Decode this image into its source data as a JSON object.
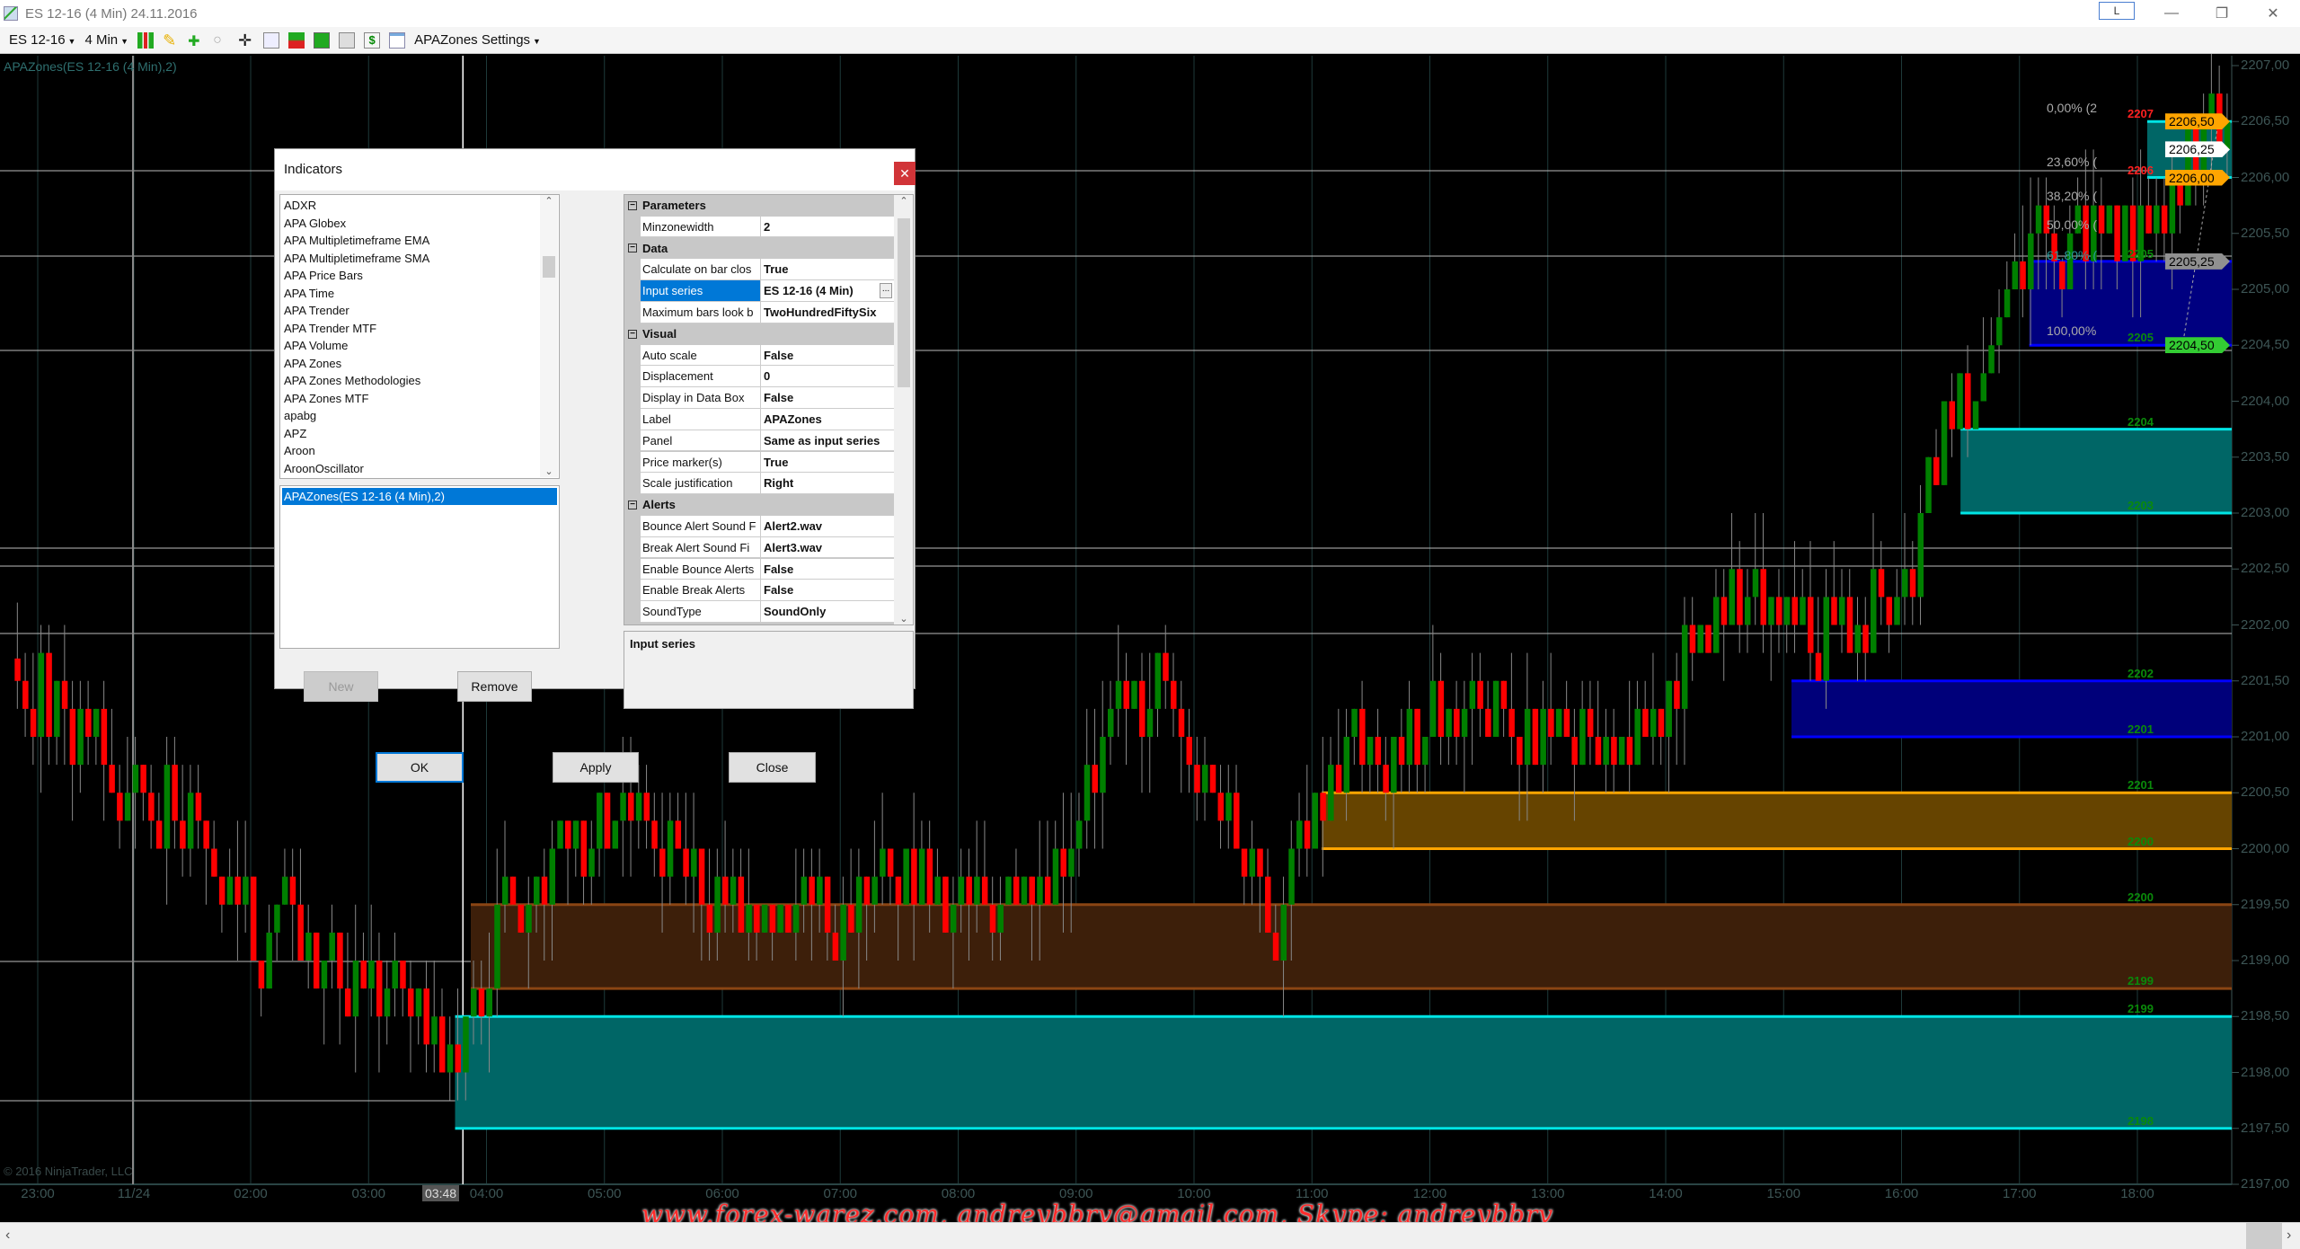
{
  "window": {
    "title": "ES 12-16 (4 Min)  24.11.2016",
    "layout_button": "L",
    "minimize_icon": "minimize-icon",
    "restore_icon": "restore-icon",
    "close_icon": "close-icon"
  },
  "toolbar": {
    "instrument": "ES 12-16",
    "interval": "4 Min",
    "settings_label": "APAZones Settings"
  },
  "chart": {
    "indicator_label": "APAZones(ES 12-16 (4 Min),2)",
    "copyright": "© 2016 NinjaTrader, LLC",
    "watermark": "www.forex-warez.com, andreybbrv@gmail.com, Skype: andreybbrv",
    "cursor_time": "03:48",
    "price_axis": [
      "2207,00",
      "2206,50",
      "2206,00",
      "2205,50",
      "2205,00",
      "2204,50",
      "2204,00",
      "2203,50",
      "2203,00",
      "2202,50",
      "2202,00",
      "2201,50",
      "2201,00",
      "2200,50",
      "2200,00",
      "2199,50",
      "2199,00",
      "2198,50",
      "2198,00",
      "2197,50",
      "2197,00"
    ],
    "price_range": [
      2197,
      2207
    ],
    "time_axis": [
      "23:00",
      "11/24",
      "02:00",
      "03:00",
      "04:00",
      "05:00",
      "06:00",
      "07:00",
      "08:00",
      "09:00",
      "10:00",
      "11:00",
      "12:00",
      "13:00",
      "14:00",
      "15:00",
      "16:00",
      "17:00",
      "18:00"
    ],
    "price_markers": [
      {
        "label": "2206,50",
        "price": 2206.5,
        "color": "#ffa500"
      },
      {
        "label": "2206,25",
        "price": 2206.25,
        "color": "#ffffff"
      },
      {
        "label": "2206,00",
        "price": 2206.0,
        "color": "#ffa500"
      },
      {
        "label": "2205,25",
        "price": 2205.25,
        "color": "#909090"
      },
      {
        "label": "2204,50",
        "price": 2204.5,
        "color": "#33cc33"
      }
    ],
    "zones": [
      {
        "top": 2206.5,
        "bottom": 2206.0,
        "start": "18:05",
        "fill": "#006666",
        "line": "#00e5e5",
        "top_label": "2207",
        "bottom_label": "2206",
        "label_color": "#ff2020"
      },
      {
        "top": 2205.25,
        "bottom": 2204.5,
        "start": "17:05",
        "fill": "#000080",
        "line": "#0000ff",
        "top_label": "2205",
        "bottom_label": "2205",
        "label_color": "#0a8a0a"
      },
      {
        "top": 2203.75,
        "bottom": 2203.0,
        "start": "16:30",
        "fill": "#006666",
        "line": "#00e5e5",
        "top_label": "2204",
        "bottom_label": "2203",
        "label_color": "#0a8a0a"
      },
      {
        "top": 2201.5,
        "bottom": 2201.0,
        "start": "15:04",
        "fill": "#00007a",
        "line": "#0000ff",
        "top_label": "2202",
        "bottom_label": "2201",
        "label_color": "#0a8a0a"
      },
      {
        "top": 2200.5,
        "bottom": 2200.0,
        "start": "11:05",
        "fill": "#664400",
        "line": "#ffa500",
        "top_label": "2201",
        "bottom_label": "2200",
        "label_color": "#0a8a0a"
      },
      {
        "top": 2199.5,
        "bottom": 2198.75,
        "start": "03:52",
        "fill": "#3d1f0a",
        "line": "#8b4513",
        "top_label": "2200",
        "bottom_label": "2199",
        "label_color": "#0a8a0a"
      },
      {
        "top": 2198.5,
        "bottom": 2197.5,
        "start": "03:44",
        "fill": "#006666",
        "line": "#00e5e5",
        "top_label": "2199",
        "bottom_label": "2198",
        "label_color": "#0a8a0a"
      }
    ],
    "fib_levels": [
      "0,00% (2",
      "23,60% (",
      "38,20% (",
      "50,00% (",
      "61,80% (",
      "100,00%"
    ],
    "colors": {
      "up": "#008000",
      "down": "#ff0000",
      "grid": "#1e3a3a"
    }
  },
  "dialog": {
    "title": "Indicators",
    "close_icon": "close-icon",
    "indicators": [
      "ADXR",
      "APA Globex",
      "APA Multipletimeframe EMA",
      "APA Multipletimeframe SMA",
      "APA Price Bars",
      "APA Time",
      "APA Trender",
      "APA Trender MTF",
      "APA Volume",
      "APA Zones",
      "APA Zones Methodologies",
      "APA Zones MTF",
      "apabg",
      "APZ",
      "Aroon",
      "AroonOscillator"
    ],
    "applied": [
      "APAZones(ES 12-16 (4 Min),2)"
    ],
    "new_label": "New",
    "remove_label": "Remove",
    "properties": [
      {
        "category": "Parameters"
      },
      {
        "name": "Minzonewidth",
        "value": "2"
      },
      {
        "category": "Data"
      },
      {
        "name": "Calculate on bar clos",
        "value": "True"
      },
      {
        "name": "Input series",
        "value": "ES 12-16 (4 Min)",
        "selected": true,
        "ellipsis": "..."
      },
      {
        "name": "Maximum bars look b",
        "value": "TwoHundredFiftySix"
      },
      {
        "category": "Visual"
      },
      {
        "name": "Auto scale",
        "value": "False"
      },
      {
        "name": "Displacement",
        "value": "0"
      },
      {
        "name": "Display in Data Box",
        "value": "False"
      },
      {
        "name": "Label",
        "value": "APAZones"
      },
      {
        "name": "Panel",
        "value": "Same as input series"
      },
      {
        "name": "Price marker(s)",
        "value": "True"
      },
      {
        "name": "Scale justification",
        "value": "Right"
      },
      {
        "category": "Alerts"
      },
      {
        "name": "Bounce Alert Sound F",
        "value": "Alert2.wav"
      },
      {
        "name": "Break Alert Sound Fi",
        "value": "Alert3.wav"
      },
      {
        "name": "Enable Bounce Alerts",
        "value": "False"
      },
      {
        "name": "Enable Break Alerts",
        "value": "False"
      },
      {
        "name": "SoundType",
        "value": "SoundOnly"
      }
    ],
    "description_title": "Input series",
    "ok_label": "OK",
    "apply_label": "Apply",
    "close_label": "Close"
  }
}
